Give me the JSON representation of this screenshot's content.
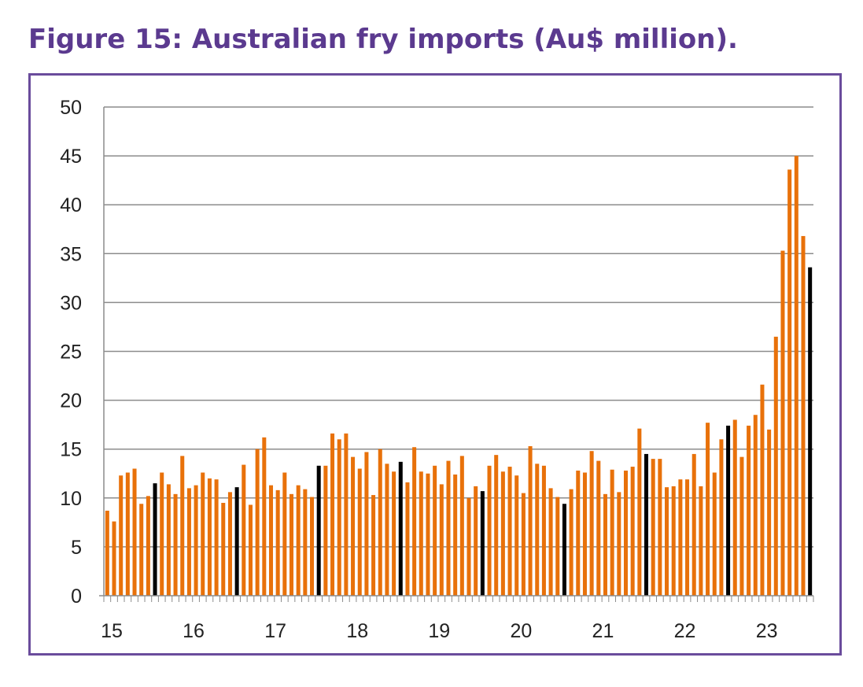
{
  "title": "Figure 15: Australian fry imports (Au$ million).",
  "colors": {
    "orange": "#e8710a",
    "black": "#000000",
    "frame": "#6a4c9c",
    "title": "#5b3a8f",
    "grid": "#8c8c8c"
  },
  "chart_data": {
    "type": "bar",
    "title": "Figure 15: Australian fry imports (Au$ million).",
    "xlabel": "",
    "ylabel": "",
    "ylim": [
      0,
      50
    ],
    "yticks": [
      0,
      5,
      10,
      15,
      20,
      25,
      30,
      35,
      40,
      45,
      50
    ],
    "grid": true,
    "legend": "none",
    "x_tick_labels": [
      "15",
      "16",
      "17",
      "18",
      "19",
      "20",
      "21",
      "22",
      "23"
    ],
    "highlight_color_note_index": "June bars shown in black",
    "values": [
      8.7,
      7.6,
      12.3,
      12.6,
      13.0,
      9.4,
      10.2,
      11.5,
      12.6,
      11.4,
      10.4,
      14.3,
      11.0,
      11.3,
      12.6,
      12.0,
      11.9,
      9.5,
      10.6,
      11.1,
      13.4,
      9.3,
      15.0,
      16.2,
      11.3,
      10.8,
      12.6,
      10.4,
      11.3,
      10.9,
      10.1,
      13.3,
      13.3,
      16.6,
      16.0,
      16.6,
      14.2,
      13.0,
      14.7,
      10.3,
      15.0,
      13.5,
      12.7,
      13.7,
      11.6,
      15.2,
      12.7,
      12.5,
      13.3,
      11.4,
      13.8,
      12.4,
      14.3,
      10.0,
      11.2,
      10.7,
      13.3,
      14.4,
      12.7,
      13.2,
      12.3,
      10.5,
      15.3,
      13.5,
      13.3,
      11.0,
      10.1,
      9.4,
      10.9,
      12.8,
      12.6,
      14.8,
      13.8,
      10.4,
      12.9,
      10.6,
      12.8,
      13.2,
      17.1,
      14.5,
      14.0,
      14.0,
      11.1,
      11.2,
      11.9,
      11.9,
      14.5,
      11.2,
      17.7,
      12.6,
      16.0,
      17.4,
      18.0,
      14.2,
      17.4,
      18.5,
      21.6,
      17.0,
      26.5,
      35.3,
      43.6,
      45.0,
      36.8,
      33.6
    ],
    "bar_colors": [
      "#e8710a",
      "#e8710a",
      "#e8710a",
      "#e8710a",
      "#e8710a",
      "#e8710a",
      "#e8710a",
      "#000000",
      "#e8710a",
      "#e8710a",
      "#e8710a",
      "#e8710a",
      "#e8710a",
      "#e8710a",
      "#e8710a",
      "#e8710a",
      "#e8710a",
      "#e8710a",
      "#e8710a",
      "#000000",
      "#e8710a",
      "#e8710a",
      "#e8710a",
      "#e8710a",
      "#e8710a",
      "#e8710a",
      "#e8710a",
      "#e8710a",
      "#e8710a",
      "#e8710a",
      "#e8710a",
      "#000000",
      "#e8710a",
      "#e8710a",
      "#e8710a",
      "#e8710a",
      "#e8710a",
      "#e8710a",
      "#e8710a",
      "#e8710a",
      "#e8710a",
      "#e8710a",
      "#e8710a",
      "#000000",
      "#e8710a",
      "#e8710a",
      "#e8710a",
      "#e8710a",
      "#e8710a",
      "#e8710a",
      "#e8710a",
      "#e8710a",
      "#e8710a",
      "#e8710a",
      "#e8710a",
      "#000000",
      "#e8710a",
      "#e8710a",
      "#e8710a",
      "#e8710a",
      "#e8710a",
      "#e8710a",
      "#e8710a",
      "#e8710a",
      "#e8710a",
      "#e8710a",
      "#e8710a",
      "#000000",
      "#e8710a",
      "#e8710a",
      "#e8710a",
      "#e8710a",
      "#e8710a",
      "#e8710a",
      "#e8710a",
      "#e8710a",
      "#e8710a",
      "#e8710a",
      "#e8710a",
      "#000000",
      "#e8710a",
      "#e8710a",
      "#e8710a",
      "#e8710a",
      "#e8710a",
      "#e8710a",
      "#e8710a",
      "#e8710a",
      "#e8710a",
      "#e8710a",
      "#e8710a",
      "#000000",
      "#e8710a",
      "#e8710a",
      "#e8710a",
      "#e8710a",
      "#e8710a",
      "#e8710a",
      "#e8710a",
      "#e8710a",
      "#e8710a",
      "#e8710a",
      "#e8710a",
      "#000000"
    ]
  }
}
